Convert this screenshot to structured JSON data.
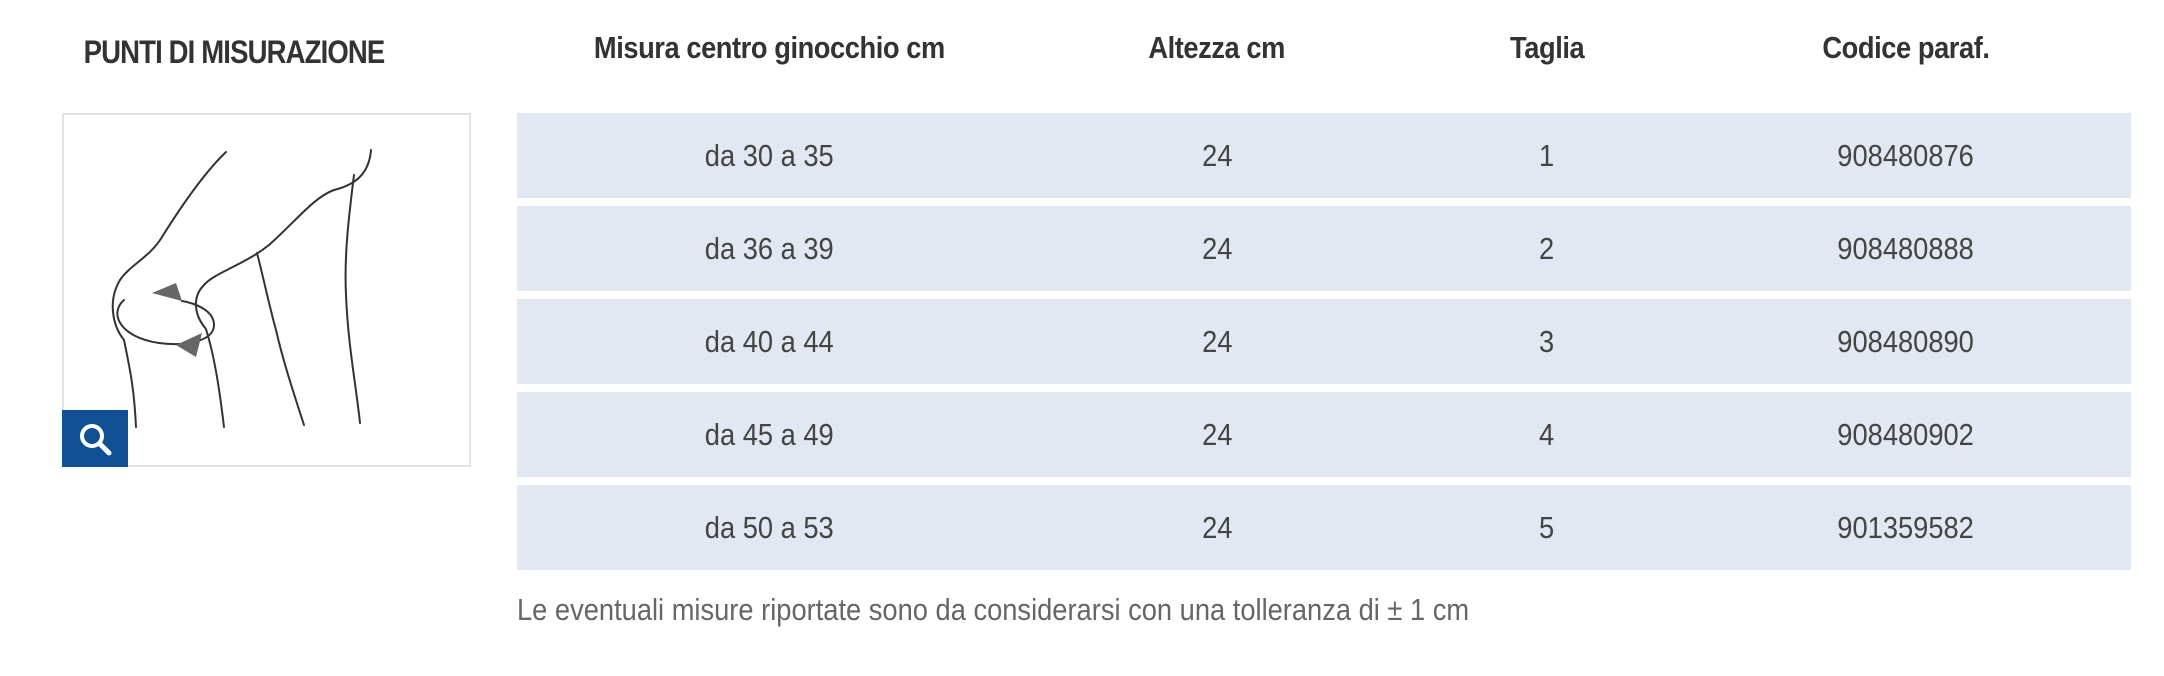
{
  "left_panel": {
    "title": "PUNTI DI MISURAZIONE",
    "diagram_icon": "knee-measurement-illustration",
    "zoom_icon": "search-icon",
    "zoom_color": "#0f4f93"
  },
  "table": {
    "headers": [
      "Misura centro ginocchio cm",
      "Altezza cm",
      "Taglia",
      "Codice paraf."
    ],
    "rows": [
      [
        "da 30 a 35",
        "24",
        "1",
        "908480876"
      ],
      [
        "da 36 a 39",
        "24",
        "2",
        "908480888"
      ],
      [
        "da 40 a 44",
        "24",
        "3",
        "908480890"
      ],
      [
        "da 45 a 49",
        "24",
        "4",
        "908480902"
      ],
      [
        "da 50 a 53",
        "24",
        "5",
        "901359582"
      ]
    ],
    "row_color": "#e1e8f1"
  },
  "note": "Le eventuali misure riportate sono da considerarsi con una tolleranza di ± 1 cm"
}
